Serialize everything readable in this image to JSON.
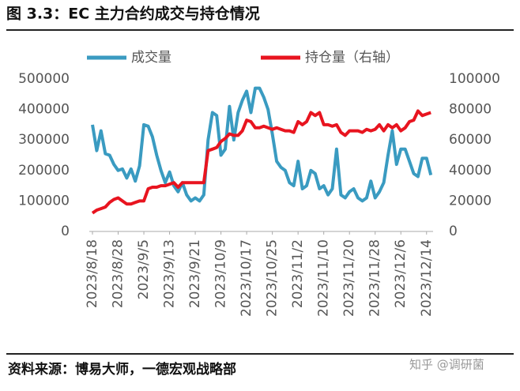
{
  "chart_data": {
    "type": "line",
    "title": "图 3.3：EC 主力合约成交与持仓情况",
    "source": "资料来源：博易大师，一德宏观战略部",
    "watermark": "知乎 @调研菌",
    "categories": [
      "2023/8/18",
      null,
      null,
      null,
      null,
      null,
      "2023/8/28",
      null,
      null,
      null,
      null,
      null,
      "2023/9/5",
      null,
      null,
      null,
      null,
      null,
      "2023/9/13",
      null,
      null,
      null,
      null,
      null,
      "2023/9/21",
      null,
      null,
      null,
      null,
      null,
      "2023/10/9",
      null,
      null,
      null,
      null,
      null,
      "2023/10/17",
      null,
      null,
      null,
      null,
      null,
      "2023/10/25",
      null,
      null,
      null,
      null,
      null,
      "2023/11/2",
      null,
      null,
      null,
      null,
      null,
      "2023/11/10",
      null,
      null,
      null,
      null,
      null,
      "2023/11/20",
      null,
      null,
      null,
      null,
      null,
      "2023/11/28",
      null,
      null,
      null,
      null,
      null,
      "2023/12/6",
      null,
      null,
      null,
      null,
      null,
      "2023/12/14",
      null
    ],
    "series": [
      {
        "name": "成交量",
        "color": "#3a9bc1",
        "axis": "y",
        "values": [
          350000,
          265000,
          330000,
          255000,
          250000,
          220000,
          200000,
          205000,
          175000,
          205000,
          165000,
          215000,
          350000,
          345000,
          310000,
          250000,
          200000,
          160000,
          195000,
          150000,
          130000,
          160000,
          120000,
          100000,
          110000,
          100000,
          120000,
          300000,
          390000,
          380000,
          250000,
          270000,
          410000,
          300000,
          390000,
          430000,
          460000,
          390000,
          470000,
          470000,
          440000,
          400000,
          320000,
          230000,
          210000,
          200000,
          160000,
          150000,
          230000,
          140000,
          150000,
          200000,
          190000,
          140000,
          150000,
          120000,
          140000,
          270000,
          120000,
          110000,
          130000,
          140000,
          110000,
          100000,
          110000,
          165000,
          110000,
          130000,
          160000,
          250000,
          330000,
          220000,
          270000,
          270000,
          230000,
          190000,
          180000,
          240000,
          240000,
          185000
        ]
      },
      {
        "name": "持仓量（右轴）",
        "color": "#e8141f",
        "axis": "y2",
        "values": [
          12000,
          14000,
          15000,
          16000,
          19000,
          21000,
          22000,
          20000,
          18000,
          18000,
          19000,
          20000,
          20000,
          28000,
          29000,
          29000,
          30000,
          30000,
          31000,
          32000,
          29000,
          32000,
          32000,
          32000,
          32000,
          32000,
          32000,
          53000,
          54000,
          55000,
          59000,
          61000,
          64000,
          63000,
          63000,
          66000,
          73000,
          72000,
          68000,
          68000,
          69000,
          68000,
          67000,
          68000,
          67000,
          66000,
          66000,
          65000,
          72000,
          70000,
          72000,
          78000,
          76000,
          78000,
          70000,
          70000,
          69000,
          70000,
          65000,
          63000,
          66000,
          66000,
          66000,
          65000,
          67000,
          66000,
          67000,
          70000,
          66000,
          70000,
          68000,
          70000,
          66000,
          68000,
          72000,
          73000,
          79000,
          76000,
          77000,
          78000
        ]
      }
    ],
    "ylim": [
      0,
      500000
    ],
    "yticks": [
      0,
      100000,
      200000,
      300000,
      400000,
      500000
    ],
    "y2lim": [
      0,
      100000
    ],
    "y2ticks": [
      0,
      20000,
      40000,
      60000,
      80000,
      100000
    ]
  }
}
